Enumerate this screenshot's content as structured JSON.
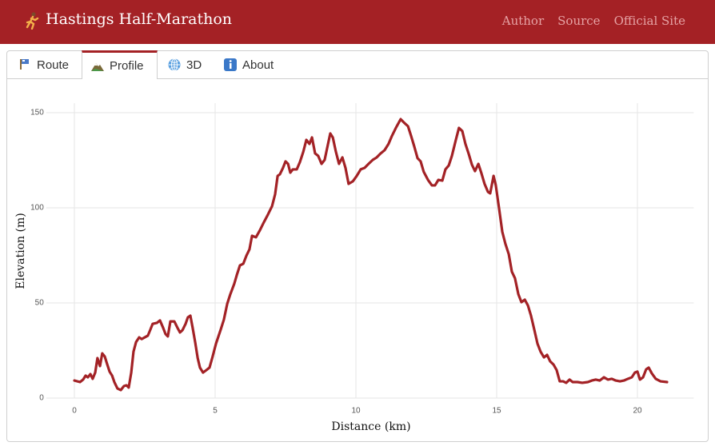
{
  "header": {
    "title": "Hastings Half-Marathon",
    "links": [
      "Author",
      "Source",
      "Official Site"
    ]
  },
  "tabs": [
    {
      "label": "Route",
      "active": false
    },
    {
      "label": "Profile",
      "active": true
    },
    {
      "label": "3D",
      "active": false
    },
    {
      "label": "About",
      "active": false
    }
  ],
  "chart_data": {
    "type": "line",
    "xlabel": "Distance (km)",
    "ylabel": "Elevation (m)",
    "color": "#a32226",
    "grid": true,
    "xlim": [
      -1,
      22
    ],
    "ylim": [
      -5,
      155
    ],
    "xticks": [
      0,
      5,
      10,
      15,
      20
    ],
    "yticks": [
      0,
      50,
      100,
      150
    ],
    "x": [
      0,
      0.2,
      0.31,
      0.4,
      0.48,
      0.57,
      0.65,
      0.74,
      0.82,
      0.91,
      0.99,
      1.08,
      1.16,
      1.25,
      1.34,
      1.42,
      1.53,
      1.65,
      1.76,
      1.85,
      1.93,
      2.02,
      2.1,
      2.19,
      2.3,
      2.39,
      2.5,
      2.61,
      2.7,
      2.78,
      2.93,
      3.04,
      3.15,
      3.24,
      3.32,
      3.41,
      3.55,
      3.66,
      3.75,
      3.84,
      3.95,
      4.03,
      4.12,
      4.2,
      4.29,
      4.38,
      4.46,
      4.57,
      4.69,
      4.8,
      4.91,
      5.03,
      5.2,
      5.31,
      5.43,
      5.54,
      5.68,
      5.77,
      5.88,
      6.0,
      6.11,
      6.22,
      6.31,
      6.45,
      6.59,
      6.73,
      6.88,
      7.02,
      7.13,
      7.22,
      7.3,
      7.41,
      7.5,
      7.59,
      7.67,
      7.76,
      7.9,
      8.01,
      8.13,
      8.24,
      8.35,
      8.44,
      8.55,
      8.66,
      8.78,
      8.89,
      9.01,
      9.09,
      9.18,
      9.29,
      9.4,
      9.52,
      9.63,
      9.74,
      9.89,
      10.03,
      10.17,
      10.31,
      10.45,
      10.6,
      10.74,
      10.88,
      11.02,
      11.16,
      11.28,
      11.42,
      11.59,
      11.73,
      11.85,
      11.96,
      12.07,
      12.19,
      12.3,
      12.41,
      12.56,
      12.7,
      12.81,
      12.93,
      13.07,
      13.18,
      13.3,
      13.41,
      13.55,
      13.66,
      13.78,
      13.89,
      14.01,
      14.12,
      14.23,
      14.35,
      14.46,
      14.57,
      14.69,
      14.77,
      14.89,
      14.97,
      15.09,
      15.2,
      15.31,
      15.43,
      15.54,
      15.65,
      15.77,
      15.88,
      16.0,
      16.11,
      16.22,
      16.34,
      16.45,
      16.56,
      16.68,
      16.79,
      16.9,
      17.02,
      17.13,
      17.24,
      17.36,
      17.47,
      17.59,
      17.7,
      17.87,
      18.04,
      18.24,
      18.38,
      18.52,
      18.66,
      18.81,
      18.95,
      19.09,
      19.23,
      19.38,
      19.52,
      19.66,
      19.8,
      19.91,
      20.0,
      20.09,
      20.2,
      20.31,
      20.4,
      20.51,
      20.65,
      20.82,
      21.05
    ],
    "values": [
      9.2,
      8.4,
      9.7,
      11.8,
      10.9,
      12.6,
      10.1,
      13.4,
      21,
      16.8,
      23.5,
      21.8,
      18,
      13.9,
      11.8,
      8.4,
      5,
      4.2,
      6.3,
      6.7,
      5.5,
      13.4,
      24.4,
      29.4,
      31.9,
      31,
      31.9,
      32.8,
      36,
      39,
      39.5,
      40.8,
      37,
      33.6,
      32.4,
      40.3,
      40.3,
      37,
      34.5,
      35.7,
      39,
      42.4,
      43.3,
      37,
      29.4,
      21,
      16,
      13.4,
      14.7,
      16,
      21.8,
      28.6,
      36.1,
      41.2,
      49.6,
      54.6,
      60.1,
      64.7,
      69.7,
      70.6,
      74.8,
      78.2,
      85.3,
      84.5,
      88.2,
      92.4,
      96.6,
      100.8,
      107.1,
      116.8,
      117.6,
      121,
      124.4,
      123.1,
      118.5,
      120.2,
      120.2,
      124,
      129.4,
      135.7,
      133.6,
      137,
      128.6,
      127.3,
      123.1,
      125.2,
      133.6,
      139.1,
      137,
      129.4,
      123.1,
      126.5,
      121,
      112.6,
      113.9,
      116.8,
      120.2,
      121,
      123.1,
      125.2,
      126.5,
      128.6,
      130.3,
      133.6,
      137.8,
      142,
      146.6,
      144.5,
      142.9,
      137.8,
      132.4,
      126.1,
      124.4,
      118.9,
      114.7,
      111.8,
      111.8,
      114.7,
      114.3,
      120.2,
      122.3,
      127.3,
      135.7,
      142,
      140.3,
      133.6,
      128.2,
      122.7,
      119.3,
      123.1,
      118.1,
      112.6,
      108.4,
      107.6,
      116.8,
      111.8,
      99.2,
      87.4,
      81.1,
      75.6,
      66.4,
      63,
      54.6,
      50.4,
      51.7,
      48.7,
      43.3,
      35.7,
      28.6,
      24.4,
      21.4,
      22.7,
      19.3,
      17.6,
      14.7,
      8.8,
      8.8,
      8,
      9.7,
      8.4,
      8.4,
      8,
      8.4,
      9.2,
      9.7,
      9.2,
      10.9,
      9.7,
      10.1,
      9.2,
      8.8,
      9.2,
      10.1,
      10.9,
      13.4,
      13.9,
      9.7,
      10.9,
      15.1,
      16,
      13,
      10.1,
      8.8,
      8.4
    ]
  }
}
